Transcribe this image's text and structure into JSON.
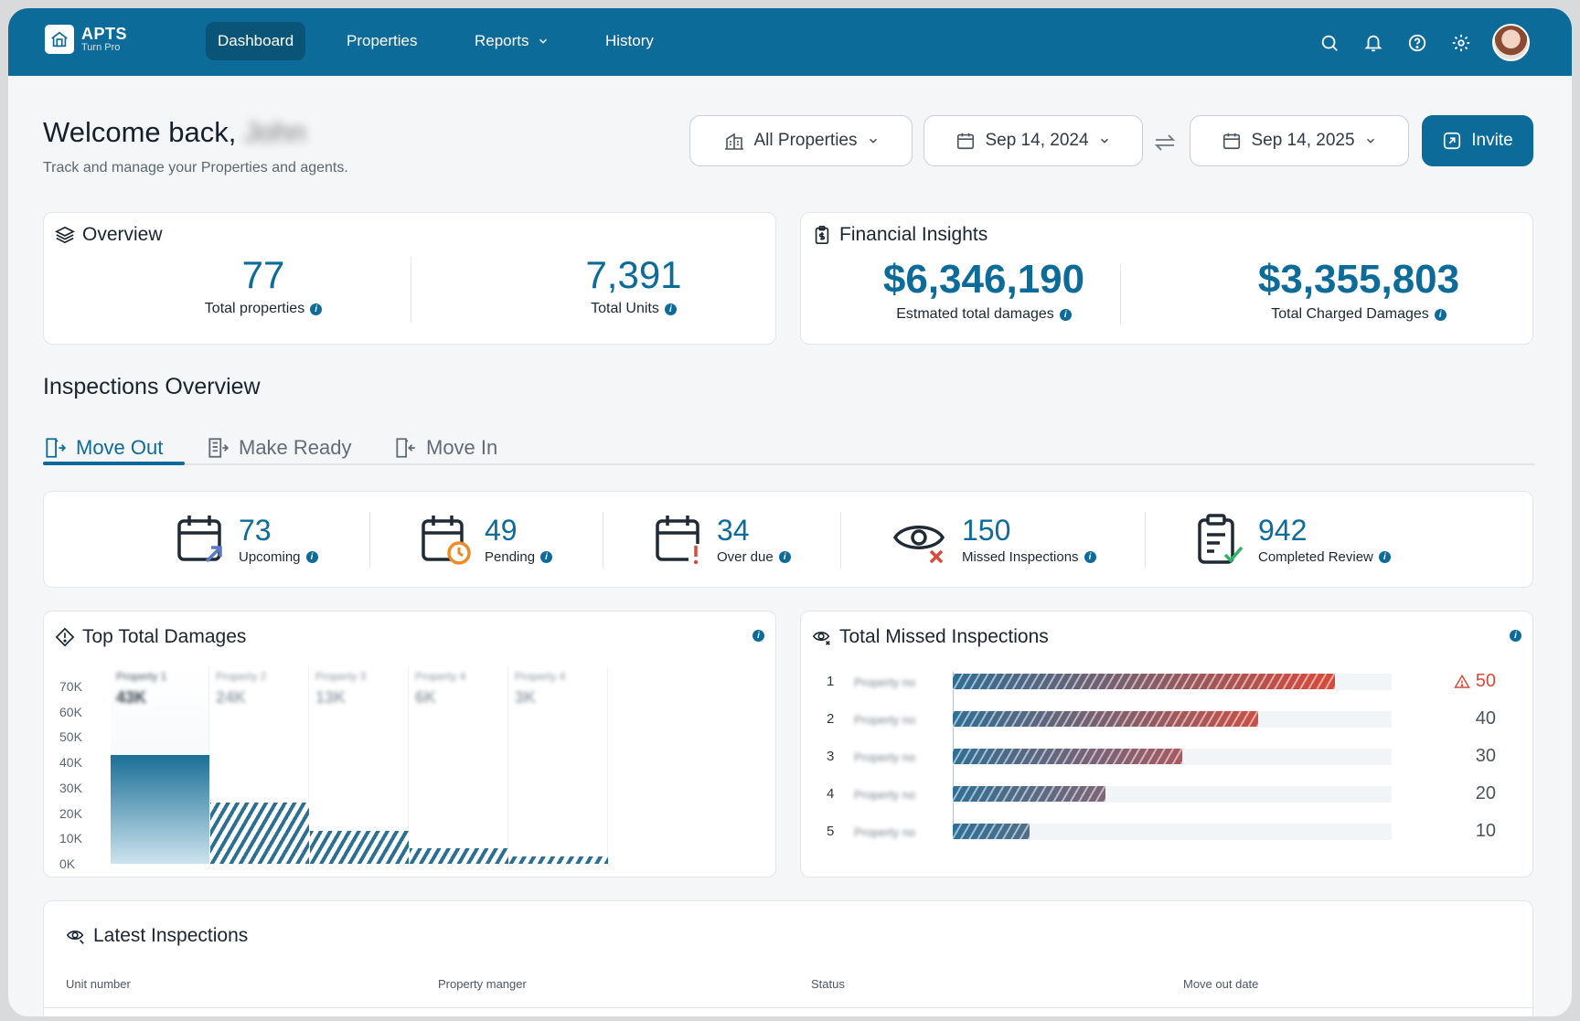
{
  "nav": {
    "brand": "APTS",
    "brand_sub": "Turn Pro",
    "items": [
      {
        "label": "Dashboard",
        "active": true
      },
      {
        "label": "Properties"
      },
      {
        "label": "Reports",
        "has_dropdown": true
      },
      {
        "label": "History"
      }
    ],
    "icons": [
      "search-icon",
      "bell-icon",
      "help-icon",
      "gear-icon"
    ]
  },
  "header": {
    "welcome": "Welcome back,",
    "user_name": "John",
    "subtitle": "Track and manage your Properties and agents.",
    "property_filter": "All Properties",
    "date_from": "Sep 14, 2024",
    "date_to": "Sep 14, 2025",
    "invite_label": "Invite"
  },
  "overview": {
    "title": "Overview",
    "stats": [
      {
        "value": "77",
        "label": "Total properties"
      },
      {
        "value": "7,391",
        "label": "Total Units"
      }
    ]
  },
  "financial": {
    "title": "Financial Insights",
    "stats": [
      {
        "value": "$6,346,190",
        "label": "Estmated total damages"
      },
      {
        "value": "$3,355,803",
        "label": "Total Charged Damages"
      }
    ]
  },
  "inspections": {
    "title": "Inspections Overview",
    "tabs": [
      {
        "label": "Move Out",
        "active": true
      },
      {
        "label": "Make Ready"
      },
      {
        "label": "Move In"
      }
    ],
    "stats": [
      {
        "value": "73",
        "label": "Upcoming"
      },
      {
        "value": "49",
        "label": "Pending"
      },
      {
        "value": "34",
        "label": "Over due"
      },
      {
        "value": "150",
        "label": "Missed Inspections"
      },
      {
        "value": "942",
        "label": "Completed Review"
      }
    ]
  },
  "top_damages": {
    "title": "Top Total Damages",
    "y_ticks": [
      "70K",
      "60K",
      "50K",
      "40K",
      "30K",
      "20K",
      "10K",
      "0K"
    ]
  },
  "missed": {
    "title": "Total Missed Inspections"
  },
  "latest": {
    "title": "Latest Inspections",
    "columns": [
      "Unit number",
      "Property manger",
      "Status",
      "Move out date"
    ]
  },
  "colors": {
    "primary": "#0d6b99",
    "danger": "#d94a3a",
    "warning": "#f08a24",
    "success": "#2fb36b"
  },
  "chart_data": [
    {
      "type": "bar",
      "title": "Top Total Damages",
      "categories": [
        "Property 1",
        "Property 2",
        "Property 3",
        "Property 4",
        "Property 4"
      ],
      "values": [
        43000,
        24000,
        13000,
        6000,
        3000
      ],
      "value_labels": [
        "43K",
        "24K",
        "13K",
        "6K",
        "3K"
      ],
      "ylim": [
        0,
        70000
      ],
      "grid": false
    },
    {
      "type": "bar",
      "orientation": "horizontal",
      "title": "Total Missed Inspections",
      "ranks": [
        "1",
        "2",
        "3",
        "4",
        "5"
      ],
      "categories": [
        "Property no",
        "Property no",
        "Property no",
        "Property no",
        "Property no"
      ],
      "values": [
        50,
        40,
        30,
        20,
        10
      ],
      "value_labels": [
        "50",
        "40",
        "30",
        "20",
        "10"
      ]
    }
  ]
}
